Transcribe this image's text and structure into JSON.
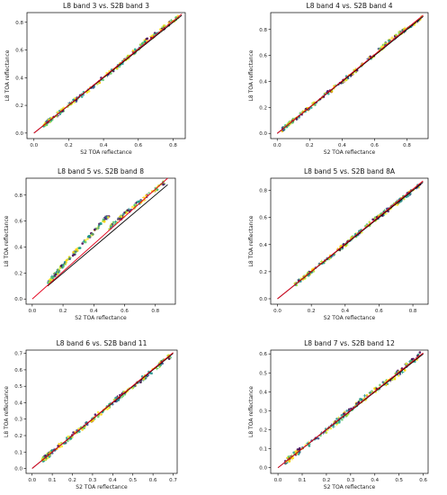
{
  "figure": {
    "colors": {
      "one_to_one": "#000000",
      "fit": "#e3001b",
      "points": [
        "#440154",
        "#3b528b",
        "#21918c",
        "#1fa187",
        "#5ec962",
        "#b5de2b",
        "#fde725",
        "#ffcc00"
      ]
    }
  },
  "chart_data": [
    {
      "type": "scatter",
      "title": "L8 band 3 vs. S2B band 3",
      "xlabel": "S2 TOA reflectance",
      "ylabel": "L8 TOA reflectance",
      "xlim": [
        -0.04,
        0.87
      ],
      "ylim": [
        -0.04,
        0.87
      ],
      "xticks": [
        0.0,
        0.2,
        0.4,
        0.6,
        0.8
      ],
      "yticks": [
        0.0,
        0.2,
        0.4,
        0.6,
        0.8
      ],
      "xtick_labels": [
        "0.0",
        "0.2",
        "0.4",
        "0.6",
        "0.8"
      ],
      "ytick_labels": [
        "0.0",
        "0.2",
        "0.4",
        "0.6",
        "0.8"
      ],
      "lines": [
        {
          "style": "one-to-one",
          "x": [
            0.0,
            0.85
          ],
          "y": [
            0.0,
            0.85
          ]
        },
        {
          "style": "fit",
          "x": [
            0.0,
            0.85
          ],
          "y": [
            0.0,
            0.86
          ]
        }
      ],
      "point_ranges": [
        {
          "x": [
            0.05,
            0.12
          ],
          "y": [
            0.05,
            0.12
          ]
        },
        {
          "x": [
            0.12,
            0.28
          ],
          "y": [
            0.12,
            0.28
          ]
        },
        {
          "x": [
            0.28,
            0.5
          ],
          "y": [
            0.28,
            0.5
          ]
        },
        {
          "x": [
            0.5,
            0.64
          ],
          "y": [
            0.5,
            0.66
          ]
        },
        {
          "x": [
            0.64,
            0.84
          ],
          "y": [
            0.66,
            0.85
          ]
        }
      ]
    },
    {
      "type": "scatter",
      "title": "L8 band 4 vs. S2B band 4",
      "xlabel": "S2 TOA reflectance",
      "ylabel": "L8 TOA reflectance",
      "xlim": [
        -0.04,
        0.93
      ],
      "ylim": [
        -0.04,
        0.93
      ],
      "xticks": [
        0.0,
        0.2,
        0.4,
        0.6,
        0.8
      ],
      "yticks": [
        0.0,
        0.2,
        0.4,
        0.6,
        0.8
      ],
      "xtick_labels": [
        "0.0",
        "0.2",
        "0.4",
        "0.6",
        "0.8"
      ],
      "ytick_labels": [
        "0.0",
        "0.2",
        "0.4",
        "0.6",
        "0.8"
      ],
      "lines": [
        {
          "style": "one-to-one",
          "x": [
            0.0,
            0.9
          ],
          "y": [
            0.0,
            0.9
          ]
        },
        {
          "style": "fit",
          "x": [
            0.0,
            0.9
          ],
          "y": [
            0.0,
            0.91
          ]
        }
      ],
      "point_ranges": [
        {
          "x": [
            0.03,
            0.1
          ],
          "y": [
            0.03,
            0.1
          ]
        },
        {
          "x": [
            0.1,
            0.3
          ],
          "y": [
            0.1,
            0.3
          ]
        },
        {
          "x": [
            0.3,
            0.5
          ],
          "y": [
            0.3,
            0.5
          ]
        },
        {
          "x": [
            0.5,
            0.7
          ],
          "y": [
            0.5,
            0.72
          ]
        },
        {
          "x": [
            0.7,
            0.89
          ],
          "y": [
            0.72,
            0.89
          ]
        }
      ]
    },
    {
      "type": "scatter",
      "title": "L8 band 5 vs. S2B band 8",
      "xlabel": "S2 TOA reflectance",
      "ylabel": "L8 TOA reflectance",
      "xlim": [
        -0.04,
        0.93
      ],
      "ylim": [
        -0.04,
        0.93
      ],
      "xticks": [
        0.0,
        0.2,
        0.4,
        0.6,
        0.8
      ],
      "yticks": [
        0.0,
        0.2,
        0.4,
        0.6,
        0.8
      ],
      "xtick_labels": [
        "0.0",
        "0.2",
        "0.4",
        "0.6",
        "0.8"
      ],
      "ytick_labels": [
        "0.0",
        "0.2",
        "0.4",
        "0.6",
        "0.8"
      ],
      "lines": [
        {
          "style": "one-to-one",
          "x": [
            0.1,
            0.88
          ],
          "y": [
            0.1,
            0.88
          ]
        },
        {
          "style": "fit",
          "x": [
            0.0,
            0.88
          ],
          "y": [
            0.0,
            0.93
          ]
        }
      ],
      "point_ranges": [
        {
          "x": [
            0.1,
            0.2
          ],
          "y": [
            0.12,
            0.26
          ]
        },
        {
          "x": [
            0.2,
            0.35
          ],
          "y": [
            0.26,
            0.45
          ]
        },
        {
          "x": [
            0.35,
            0.5
          ],
          "y": [
            0.45,
            0.65
          ]
        },
        {
          "x": [
            0.5,
            0.65
          ],
          "y": [
            0.55,
            0.7
          ]
        },
        {
          "x": [
            0.65,
            0.86
          ],
          "y": [
            0.7,
            0.9
          ]
        }
      ]
    },
    {
      "type": "scatter",
      "title": "L8 band 5 vs. S2B band 8A",
      "xlabel": "S2 TOA reflectance",
      "ylabel": "L8 TOA reflectance",
      "xlim": [
        -0.04,
        0.89
      ],
      "ylim": [
        -0.04,
        0.89
      ],
      "xticks": [
        0.0,
        0.2,
        0.4,
        0.6,
        0.8
      ],
      "yticks": [
        0.0,
        0.2,
        0.4,
        0.6,
        0.8
      ],
      "xtick_labels": [
        "0.0",
        "0.2",
        "0.4",
        "0.6",
        "0.8"
      ],
      "ytick_labels": [
        "0.0",
        "0.2",
        "0.4",
        "0.6",
        "0.8"
      ],
      "lines": [
        {
          "style": "one-to-one",
          "x": [
            0.0,
            0.86
          ],
          "y": [
            0.0,
            0.86
          ]
        },
        {
          "style": "fit",
          "x": [
            0.0,
            0.86
          ],
          "y": [
            0.0,
            0.87
          ]
        }
      ],
      "point_ranges": [
        {
          "x": [
            0.1,
            0.2
          ],
          "y": [
            0.1,
            0.2
          ]
        },
        {
          "x": [
            0.2,
            0.4
          ],
          "y": [
            0.2,
            0.4
          ]
        },
        {
          "x": [
            0.4,
            0.55
          ],
          "y": [
            0.4,
            0.56
          ]
        },
        {
          "x": [
            0.55,
            0.7
          ],
          "y": [
            0.56,
            0.7
          ]
        },
        {
          "x": [
            0.7,
            0.85
          ],
          "y": [
            0.7,
            0.85
          ]
        }
      ]
    },
    {
      "type": "scatter",
      "title": "L8 band 6 vs. S2B band 11",
      "xlabel": "S2 TOA reflectance",
      "ylabel": "L8 TOA reflectance",
      "xlim": [
        -0.03,
        0.72
      ],
      "ylim": [
        -0.03,
        0.72
      ],
      "xticks": [
        0.0,
        0.1,
        0.2,
        0.3,
        0.4,
        0.5,
        0.6,
        0.7
      ],
      "yticks": [
        0.0,
        0.1,
        0.2,
        0.3,
        0.4,
        0.5,
        0.6,
        0.7
      ],
      "xtick_labels": [
        "0.0",
        "0.1",
        "0.2",
        "0.3",
        "0.4",
        "0.5",
        "0.6",
        "0.7"
      ],
      "ytick_labels": [
        "0.0",
        "0.1",
        "0.2",
        "0.3",
        "0.4",
        "0.5",
        "0.6",
        "0.7"
      ],
      "lines": [
        {
          "style": "one-to-one",
          "x": [
            0.0,
            0.7
          ],
          "y": [
            0.0,
            0.7
          ]
        },
        {
          "style": "fit",
          "x": [
            0.0,
            0.7
          ],
          "y": [
            0.0,
            0.705
          ]
        }
      ],
      "point_ranges": [
        {
          "x": [
            0.05,
            0.1
          ],
          "y": [
            0.05,
            0.1
          ]
        },
        {
          "x": [
            0.1,
            0.25
          ],
          "y": [
            0.1,
            0.25
          ]
        },
        {
          "x": [
            0.25,
            0.4
          ],
          "y": [
            0.25,
            0.4
          ]
        },
        {
          "x": [
            0.4,
            0.55
          ],
          "y": [
            0.4,
            0.55
          ]
        },
        {
          "x": [
            0.55,
            0.69
          ],
          "y": [
            0.55,
            0.69
          ]
        }
      ]
    },
    {
      "type": "scatter",
      "title": "L8 band 7 vs. S2B band 12",
      "xlabel": "S2 TOA reflectance",
      "ylabel": "L8 TOA reflectance",
      "xlim": [
        -0.03,
        0.62
      ],
      "ylim": [
        -0.03,
        0.62
      ],
      "xticks": [
        0.0,
        0.1,
        0.2,
        0.3,
        0.4,
        0.5,
        0.6
      ],
      "yticks": [
        0.0,
        0.1,
        0.2,
        0.3,
        0.4,
        0.5,
        0.6
      ],
      "xtick_labels": [
        "0.0",
        "0.1",
        "0.2",
        "0.3",
        "0.4",
        "0.5",
        "0.6"
      ],
      "ytick_labels": [
        "0.0",
        "0.1",
        "0.2",
        "0.3",
        "0.4",
        "0.5",
        "0.6"
      ],
      "lines": [
        {
          "style": "one-to-one",
          "x": [
            0.0,
            0.6
          ],
          "y": [
            0.0,
            0.6
          ]
        },
        {
          "style": "fit",
          "x": [
            0.0,
            0.6
          ],
          "y": [
            0.0,
            0.605
          ]
        }
      ],
      "point_ranges": [
        {
          "x": [
            0.03,
            0.1
          ],
          "y": [
            0.03,
            0.1
          ]
        },
        {
          "x": [
            0.1,
            0.25
          ],
          "y": [
            0.1,
            0.25
          ]
        },
        {
          "x": [
            0.25,
            0.35
          ],
          "y": [
            0.25,
            0.36
          ]
        },
        {
          "x": [
            0.35,
            0.48
          ],
          "y": [
            0.36,
            0.48
          ]
        },
        {
          "x": [
            0.48,
            0.59
          ],
          "y": [
            0.48,
            0.6
          ]
        }
      ]
    }
  ]
}
